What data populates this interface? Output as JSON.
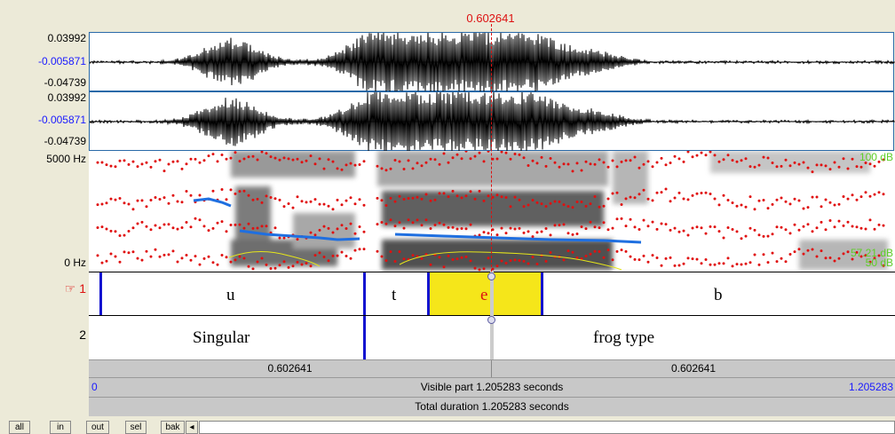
{
  "cursor_time": "0.602641",
  "waveform": {
    "channel1": {
      "max": "0.03992",
      "zero": "-0.005871",
      "min": "-0.04739"
    },
    "channel2": {
      "max": "0.03992",
      "zero": "-0.005871",
      "min": "-0.04739"
    }
  },
  "spectrogram": {
    "freq_top": "5000 Hz",
    "freq_bottom": "0 Hz",
    "db_top": "100 dB",
    "db_mid": "57.21 dB",
    "db_bottom": "50 dB"
  },
  "tier1": {
    "number": "1",
    "pointer_icon": "hand-pointer-icon",
    "intervals": [
      "u",
      "t",
      "e",
      "b"
    ]
  },
  "tier2": {
    "number": "2",
    "intervals": [
      "Singular",
      "frog type"
    ]
  },
  "time_row": {
    "left": "0.602641",
    "right": "0.602641"
  },
  "visible_row": {
    "start": "0",
    "label": "Visible part 1.205283 seconds",
    "end": "1.205283"
  },
  "total_row": {
    "label": "Total duration 1.205283 seconds"
  },
  "toolbar": {
    "all": "all",
    "in": "in",
    "out": "out",
    "sel": "sel",
    "bak": "bak",
    "scroll_left": "◂"
  },
  "colors": {
    "selection": "#f5e61a",
    "boundary": "#1414d0",
    "cursor": "#d11",
    "pitch": "#1f6fe0",
    "formant": "#e01010"
  }
}
